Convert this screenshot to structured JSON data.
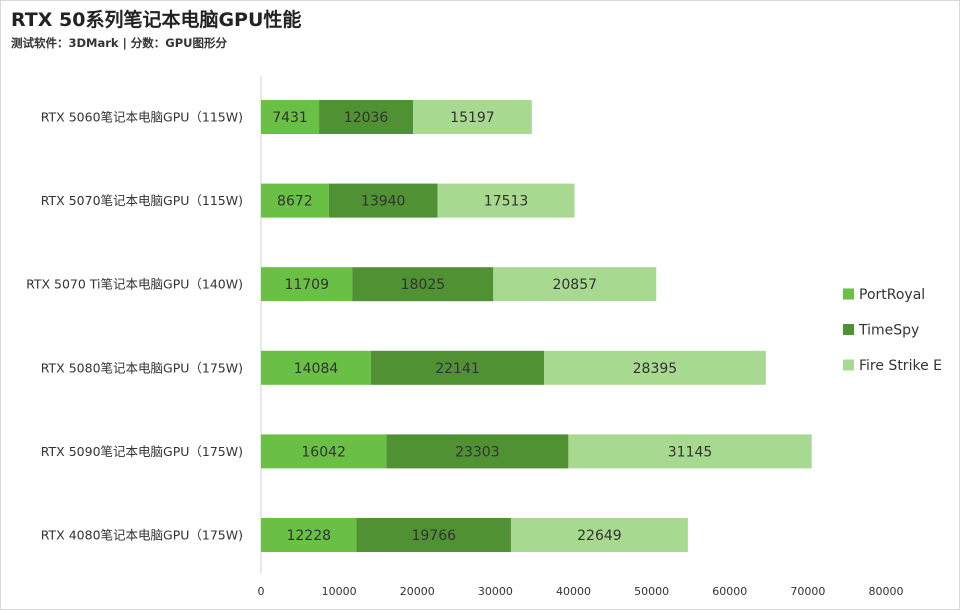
{
  "title": "RTX 50系列笔记本电脑GPU性能",
  "subtitle": "测试软件：3DMark | 分数：GPU图形分",
  "chart_data": {
    "type": "bar",
    "orientation": "horizontal",
    "stacked": true,
    "categories": [
      "RTX 5060笔记本电脑GPU（115W)",
      "RTX 5070笔记本电脑GPU（115W)",
      "RTX 5070 Ti笔记本电脑GPU（140W)",
      "RTX 5080笔记本电脑GPU（175W)",
      "RTX 5090笔记本电脑GPU（175W)",
      "RTX 4080笔记本电脑GPU（175W)"
    ],
    "series": [
      {
        "name": "PortRoyal",
        "color": "#6abf45",
        "values": [
          7431,
          8672,
          11709,
          14084,
          16042,
          12228
        ]
      },
      {
        "name": "TimeSpy",
        "color": "#4f9133",
        "values": [
          12036,
          13940,
          18025,
          22141,
          23303,
          19766
        ]
      },
      {
        "name": "Fire Strike E",
        "color": "#a8d990",
        "values": [
          15197,
          17513,
          20857,
          28395,
          31145,
          22649
        ]
      }
    ],
    "xlim": [
      0,
      80000
    ],
    "xticks": [
      0,
      10000,
      20000,
      30000,
      40000,
      50000,
      60000,
      70000,
      80000
    ],
    "grid": false,
    "legend_position": "right"
  }
}
